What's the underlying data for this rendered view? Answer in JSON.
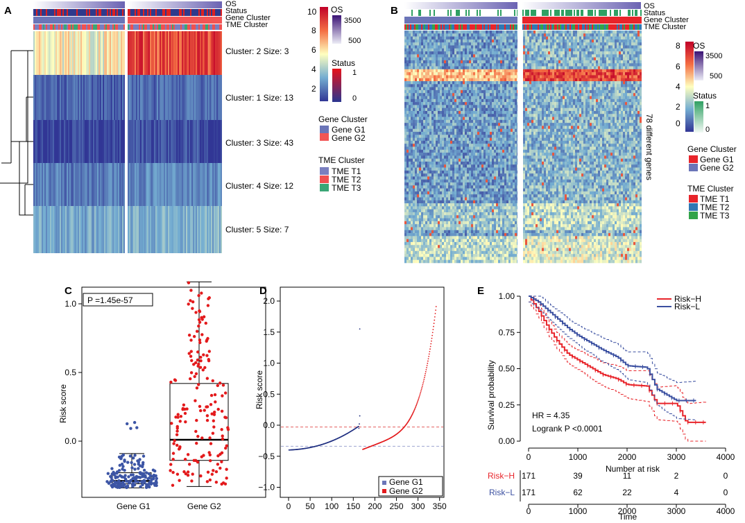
{
  "panels": {
    "A": {
      "letter": "A",
      "ann_labels": [
        "OS",
        "Status",
        "Gene Cluster",
        "TME Cluster"
      ],
      "clusters": [
        "Cluster: 2 Size: 3",
        "Cluster: 1 Size: 13",
        "Cluster: 3 Size: 43",
        "Cluster: 4 Size: 12",
        "Cluster: 5 Size: 7"
      ],
      "scale_ticks": [
        "10",
        "8",
        "6",
        "4",
        "2"
      ],
      "os_title": "OS",
      "os_ticks": [
        "3500",
        "500"
      ],
      "status_title": "Status",
      "status_ticks": [
        "1",
        "0"
      ],
      "gene_title": "Gene Cluster",
      "gene_items": [
        "Gene G1",
        "Gene G2"
      ],
      "tme_title": "TME Cluster",
      "tme_items": [
        "TME T1",
        "TME T2",
        "TME T3"
      ]
    },
    "B": {
      "letter": "B",
      "ann_labels": [
        "OS",
        "Status",
        "Gene Cluster",
        "TME Cluster"
      ],
      "rows_label": "78 different genes",
      "scale_ticks": [
        "8",
        "6",
        "4",
        "2",
        "0"
      ],
      "os_title": "OS",
      "os_ticks": [
        "3500",
        "500"
      ],
      "status_title": "Status",
      "status_ticks": [
        "1",
        "0"
      ],
      "gene_title": "Gene Cluster",
      "gene_items": [
        "Gene G1",
        "Gene G2"
      ],
      "tme_title": "TME Cluster",
      "tme_items": [
        "TME T1",
        "TME T2",
        "TME T3"
      ]
    },
    "C": {
      "letter": "C",
      "pvalue": "P =1.45e-57",
      "ylabel": "Risk score",
      "yticks": [
        "0.0",
        "0.5",
        "1.0"
      ],
      "xticks": [
        "Gene G1",
        "Gene G2"
      ]
    },
    "D": {
      "letter": "D",
      "ylabel": "Risk score",
      "yticks": [
        "−1.0",
        "−0.5",
        "0.0",
        "0.5",
        "1.0",
        "1.5",
        "2.0"
      ],
      "xticks": [
        "0",
        "50",
        "100",
        "150",
        "200",
        "250",
        "300",
        "350"
      ],
      "legend": [
        "Gene G1",
        "Gene G2"
      ]
    },
    "E": {
      "letter": "E",
      "ylabel": "Survival probability",
      "xlabel_risk": "Number at risk",
      "xlabel_time": "Time",
      "yticks": [
        "1.00",
        "0.75",
        "0.50",
        "0.25",
        "0.00"
      ],
      "xticks": [
        "0",
        "1000",
        "2000",
        "3000",
        "4000"
      ],
      "legend": [
        "Risk−H",
        "Risk−L"
      ],
      "hr": "HR = 4.35",
      "logrank": "Logrank P <0.0001",
      "risk_rows": [
        {
          "label": "Risk−H",
          "values": [
            "171",
            "39",
            "11",
            "2",
            "0"
          ]
        },
        {
          "label": "Risk−L",
          "values": [
            "171",
            "62",
            "22",
            "4",
            "0"
          ]
        }
      ]
    }
  },
  "colors": {
    "g1": "#6b75b8",
    "g2": "#f25555",
    "t1": "#7a7fbf",
    "t2": "#f05050",
    "t3": "#3aa676",
    "riskH": "#e8242a",
    "riskL": "#3a4fa0",
    "dotG1": "#3c55a5",
    "dotG2": "#e31a1c"
  },
  "chart_data": [
    {
      "type": "heatmap",
      "panel": "A",
      "rows": [
        "Cluster: 2 Size: 3",
        "Cluster: 1 Size: 13",
        "Cluster: 3 Size: 43",
        "Cluster: 4 Size: 12",
        "Cluster: 5 Size: 7"
      ],
      "column_groups": [
        "Gene G1",
        "Gene G2"
      ],
      "approx_row_level": {
        "Gene G1": [
          5.5,
          1.8,
          1.2,
          2.3,
          3.2
        ],
        "Gene G2": [
          8.5,
          2.0,
          1.5,
          2.6,
          3.4
        ]
      },
      "scale_range": [
        1,
        10
      ]
    },
    {
      "type": "heatmap",
      "panel": "B",
      "rows_count": 78,
      "column_groups": [
        "Gene G1",
        "Gene G2"
      ],
      "scale_range": [
        0,
        8
      ]
    },
    {
      "type": "scatter",
      "panel": "C",
      "categories": [
        "Gene G1",
        "Gene G2"
      ],
      "boxes": [
        {
          "name": "Gene G1",
          "min": -0.34,
          "q1": -0.31,
          "median": -0.29,
          "q3": -0.23,
          "max": -0.09,
          "outlier_max": 0.17
        },
        {
          "name": "Gene G2",
          "min": -0.33,
          "q1": -0.14,
          "median": 0.01,
          "q3": 0.42,
          "max": 1.16
        }
      ],
      "pvalue": "P =1.45e-57",
      "ylabel": "Risk score",
      "ylim": [
        -0.4,
        1.2
      ]
    },
    {
      "type": "scatter",
      "panel": "D",
      "series": [
        {
          "name": "Gene G1",
          "x_range": [
            1,
            171
          ],
          "y_start": -0.4,
          "y_end": -0.07,
          "outliers": [
            [
              165,
              1.55
            ],
            [
              165,
              0.15
            ]
          ]
        },
        {
          "name": "Gene G2",
          "x_range": [
            172,
            342
          ],
          "y_start": -0.39,
          "y_end": 1.88
        }
      ],
      "hlines": [
        -0.03,
        -0.34
      ],
      "xlim": [
        0,
        350
      ],
      "ylim": [
        -1.0,
        2.0
      ],
      "ylabel": "Risk score"
    },
    {
      "type": "line",
      "panel": "E",
      "series": [
        {
          "name": "Risk−H",
          "x": [
            0,
            200,
            400,
            600,
            800,
            1000,
            1200,
            1500,
            1800,
            2000,
            2400,
            2600,
            3000,
            3200,
            3600
          ],
          "y": [
            1.0,
            0.9,
            0.78,
            0.68,
            0.6,
            0.56,
            0.52,
            0.46,
            0.43,
            0.39,
            0.38,
            0.26,
            0.26,
            0.13,
            0.13
          ]
        },
        {
          "name": "Risk−L",
          "x": [
            0,
            200,
            400,
            600,
            800,
            1000,
            1200,
            1500,
            1800,
            2000,
            2400,
            2600,
            3000,
            3400
          ],
          "y": [
            1.0,
            0.96,
            0.9,
            0.84,
            0.78,
            0.73,
            0.69,
            0.63,
            0.58,
            0.52,
            0.51,
            0.36,
            0.28,
            0.28
          ]
        }
      ],
      "xlim": [
        0,
        4000
      ],
      "ylim": [
        0,
        1
      ],
      "hr": "HR = 4.35",
      "logrank": "Logrank P <0.0001"
    }
  ]
}
